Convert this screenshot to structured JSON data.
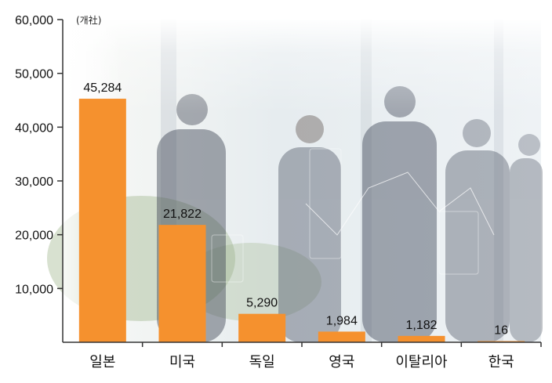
{
  "chart_data": {
    "type": "bar",
    "unit_label": "(개社)",
    "categories": [
      "일본",
      "미국",
      "독일",
      "영국",
      "이탈리아",
      "한국"
    ],
    "values": [
      45284,
      21822,
      5290,
      1984,
      1182,
      16
    ],
    "value_labels": [
      "45,284",
      "21,822",
      "5,290",
      "1,984",
      "1,182",
      "16"
    ],
    "ylim": [
      0,
      60000
    ],
    "yticks": [
      10000,
      20000,
      30000,
      40000,
      50000,
      60000
    ],
    "ytick_labels": [
      "10,000",
      "20,000",
      "30,000",
      "40,000",
      "50,000",
      "60,000"
    ],
    "bar_color": "#F5912E",
    "grid": false,
    "background": "photo of business people looking out an office window"
  }
}
